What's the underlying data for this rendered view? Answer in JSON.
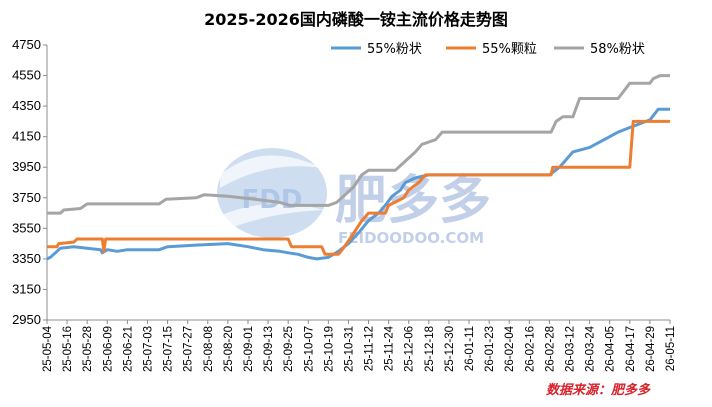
{
  "chart_data": {
    "type": "line",
    "title": "2025-2026国内磷酸一铵主流价格走势图",
    "xlabel": "",
    "ylabel": "",
    "ylim": [
      2950,
      4750
    ],
    "yticks": [
      2950,
      3150,
      3350,
      3550,
      3750,
      3950,
      4150,
      4350,
      4550,
      4750
    ],
    "grid": false,
    "legend_position": "top-right",
    "x_tick_labels": [
      "25-05-04",
      "25-05-16",
      "25-05-28",
      "25-06-09",
      "25-06-21",
      "25-07-03",
      "25-07-15",
      "25-07-27",
      "25-08-08",
      "25-08-20",
      "25-09-01",
      "25-09-13",
      "25-09-25",
      "25-10-07",
      "25-10-19",
      "25-10-31",
      "25-11-12",
      "25-11-24",
      "25-12-06",
      "25-12-18",
      "25-12-30",
      "26-01-11",
      "26-01-23",
      "26-02-04",
      "26-02-16",
      "26-02-28",
      "26-03-12",
      "26-03-24",
      "26-04-05",
      "26-04-17",
      "26-04-29",
      "26-05-11"
    ],
    "x_start": "2025-05-04",
    "x_end": "2026-05-11",
    "series": [
      {
        "name": "55%粉状",
        "color": "#5b9bd5",
        "points": [
          [
            "2025-05-04",
            3350
          ],
          [
            "2025-05-06",
            3360
          ],
          [
            "2025-05-08",
            3380
          ],
          [
            "2025-05-12",
            3420
          ],
          [
            "2025-05-20",
            3430
          ],
          [
            "2025-05-28",
            3420
          ],
          [
            "2025-06-05",
            3410
          ],
          [
            "2025-06-06",
            3390
          ],
          [
            "2025-06-09",
            3410
          ],
          [
            "2025-06-15",
            3400
          ],
          [
            "2025-06-21",
            3410
          ],
          [
            "2025-07-10",
            3410
          ],
          [
            "2025-07-15",
            3430
          ],
          [
            "2025-08-01",
            3440
          ],
          [
            "2025-08-20",
            3450
          ],
          [
            "2025-09-01",
            3430
          ],
          [
            "2025-09-10",
            3410
          ],
          [
            "2025-09-20",
            3400
          ],
          [
            "2025-09-25",
            3390
          ],
          [
            "2025-10-01",
            3380
          ],
          [
            "2025-10-07",
            3360
          ],
          [
            "2025-10-12",
            3350
          ],
          [
            "2025-10-19",
            3360
          ],
          [
            "2025-10-25",
            3400
          ],
          [
            "2025-10-31",
            3450
          ],
          [
            "2025-11-06",
            3520
          ],
          [
            "2025-11-12",
            3600
          ],
          [
            "2025-11-18",
            3650
          ],
          [
            "2025-11-22",
            3700
          ],
          [
            "2025-11-26",
            3760
          ],
          [
            "2025-12-01",
            3800
          ],
          [
            "2025-12-04",
            3850
          ],
          [
            "2025-12-10",
            3880
          ],
          [
            "2025-12-18",
            3900
          ],
          [
            "2026-02-28",
            3900
          ],
          [
            "2026-03-06",
            3950
          ],
          [
            "2026-03-10",
            4000
          ],
          [
            "2026-03-14",
            4050
          ],
          [
            "2026-03-24",
            4080
          ],
          [
            "2026-04-05",
            4150
          ],
          [
            "2026-04-10",
            4180
          ],
          [
            "2026-04-17",
            4210
          ],
          [
            "2026-04-22",
            4230
          ],
          [
            "2026-04-29",
            4260
          ],
          [
            "2026-05-04",
            4330
          ],
          [
            "2026-05-11",
            4330
          ]
        ]
      },
      {
        "name": "55%颗粒",
        "color": "#ed7d31",
        "points": [
          [
            "2025-05-04",
            3430
          ],
          [
            "2025-05-10",
            3430
          ],
          [
            "2025-05-11",
            3450
          ],
          [
            "2025-05-20",
            3460
          ],
          [
            "2025-05-22",
            3480
          ],
          [
            "2025-06-06",
            3480
          ],
          [
            "2025-06-07",
            3400
          ],
          [
            "2025-06-08",
            3480
          ],
          [
            "2025-09-25",
            3480
          ],
          [
            "2025-09-27",
            3430
          ],
          [
            "2025-10-15",
            3430
          ],
          [
            "2025-10-17",
            3380
          ],
          [
            "2025-10-25",
            3380
          ],
          [
            "2025-10-28",
            3420
          ],
          [
            "2025-11-02",
            3500
          ],
          [
            "2025-11-08",
            3600
          ],
          [
            "2025-11-12",
            3650
          ],
          [
            "2025-11-22",
            3650
          ],
          [
            "2025-11-24",
            3700
          ],
          [
            "2025-12-03",
            3750
          ],
          [
            "2025-12-06",
            3800
          ],
          [
            "2025-12-12",
            3850
          ],
          [
            "2025-12-16",
            3900
          ],
          [
            "2026-03-01",
            3900
          ],
          [
            "2026-03-02",
            3950
          ],
          [
            "2026-04-17",
            3950
          ],
          [
            "2026-04-19",
            4250
          ],
          [
            "2026-05-11",
            4250
          ]
        ]
      },
      {
        "name": "58%粉状",
        "color": "#a5a5a5",
        "points": [
          [
            "2025-05-04",
            3650
          ],
          [
            "2025-05-12",
            3650
          ],
          [
            "2025-05-14",
            3670
          ],
          [
            "2025-05-24",
            3680
          ],
          [
            "2025-05-28",
            3710
          ],
          [
            "2025-07-10",
            3710
          ],
          [
            "2025-07-14",
            3740
          ],
          [
            "2025-08-01",
            3750
          ],
          [
            "2025-08-06",
            3770
          ],
          [
            "2025-08-20",
            3760
          ],
          [
            "2025-09-05",
            3740
          ],
          [
            "2025-09-20",
            3720
          ],
          [
            "2025-09-26",
            3700
          ],
          [
            "2025-10-07",
            3700
          ],
          [
            "2025-10-19",
            3700
          ],
          [
            "2025-10-24",
            3720
          ],
          [
            "2025-10-28",
            3760
          ],
          [
            "2025-11-03",
            3820
          ],
          [
            "2025-11-08",
            3900
          ],
          [
            "2025-11-12",
            3930
          ],
          [
            "2025-11-28",
            3930
          ],
          [
            "2025-12-03",
            3980
          ],
          [
            "2025-12-10",
            4050
          ],
          [
            "2025-12-14",
            4100
          ],
          [
            "2025-12-22",
            4130
          ],
          [
            "2025-12-26",
            4180
          ],
          [
            "2026-03-01",
            4180
          ],
          [
            "2026-03-04",
            4250
          ],
          [
            "2026-03-08",
            4280
          ],
          [
            "2026-03-14",
            4280
          ],
          [
            "2026-03-18",
            4400
          ],
          [
            "2026-04-10",
            4400
          ],
          [
            "2026-04-17",
            4500
          ],
          [
            "2026-04-29",
            4500
          ],
          [
            "2026-05-01",
            4530
          ],
          [
            "2026-05-05",
            4550
          ],
          [
            "2026-05-11",
            4550
          ]
        ]
      }
    ]
  },
  "watermark": {
    "logo_text": "FDD",
    "brand_text": "肥多多",
    "url_text": "FEIDOODOO.COM"
  },
  "source_note": "数据来源：肥多多"
}
